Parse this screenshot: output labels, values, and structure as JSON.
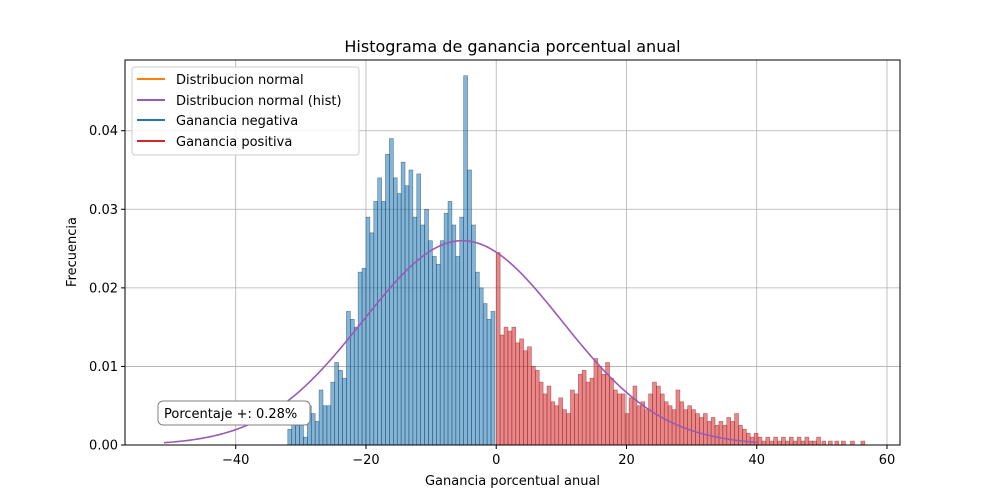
{
  "chart_data": {
    "type": "bar",
    "title": "Histograma de ganancia porcentual anual",
    "xlabel": "Ganancia porcentual anual",
    "ylabel": "Frecuencia",
    "xlim": [
      -57,
      62
    ],
    "ylim": [
      0,
      0.049
    ],
    "xticks": [
      -40,
      -20,
      0,
      20,
      40,
      60
    ],
    "yticks": [
      0.0,
      0.01,
      0.02,
      0.03,
      0.04
    ],
    "xtick_labels": [
      "−40",
      "−20",
      "0",
      "20",
      "40",
      "60"
    ],
    "ytick_labels": [
      "0.00",
      "0.01",
      "0.02",
      "0.03",
      "0.04"
    ],
    "grid": true,
    "legend_position": "top-left",
    "legend": [
      {
        "label": "Distribucion normal",
        "color": "#ff7f0e"
      },
      {
        "label": "Distribucion normal (hist)",
        "color": "#9b59b6"
      },
      {
        "label": "Ganancia negativa",
        "color": "#1f77b4"
      },
      {
        "label": "Ganancia positiva",
        "color": "#d62728"
      }
    ],
    "annotation": "Porcentaje +: 0.28%",
    "normal_curve": {
      "name": "Distribucion normal (hist)",
      "mean": -5.2,
      "std": 15.3,
      "x_range": [
        -51,
        40
      ],
      "color": "#9b59b6"
    },
    "bins": [
      [
        -32.0,
        -31.4,
        0.002
      ],
      [
        -31.4,
        -30.8,
        0.003
      ],
      [
        -30.8,
        -30.2,
        0.0025
      ],
      [
        -30.2,
        -29.6,
        0.003
      ],
      [
        -29.6,
        -29.0,
        0.001
      ],
      [
        -29.0,
        -28.4,
        0.005
      ],
      [
        -28.4,
        -27.8,
        0.004
      ],
      [
        -27.8,
        -27.2,
        0.003
      ],
      [
        -27.2,
        -26.6,
        0.007
      ],
      [
        -26.6,
        -26.0,
        0.005
      ],
      [
        -26.0,
        -25.4,
        0.005
      ],
      [
        -25.4,
        -24.8,
        0.008
      ],
      [
        -24.8,
        -24.2,
        0.0105
      ],
      [
        -24.2,
        -23.6,
        0.0095
      ],
      [
        -23.6,
        -23.0,
        0.0085
      ],
      [
        -23.0,
        -22.4,
        0.017
      ],
      [
        -22.4,
        -21.8,
        0.016
      ],
      [
        -21.8,
        -21.2,
        0.015
      ],
      [
        -21.2,
        -20.6,
        0.022
      ],
      [
        -20.6,
        -20.0,
        0.0225
      ],
      [
        -20.0,
        -19.4,
        0.029
      ],
      [
        -19.4,
        -18.8,
        0.027
      ],
      [
        -18.8,
        -18.2,
        0.031
      ],
      [
        -18.2,
        -17.6,
        0.034
      ],
      [
        -17.6,
        -17.0,
        0.031
      ],
      [
        -17.0,
        -16.4,
        0.037
      ],
      [
        -16.4,
        -15.8,
        0.039
      ],
      [
        -15.8,
        -15.2,
        0.034
      ],
      [
        -15.2,
        -14.6,
        0.032
      ],
      [
        -14.6,
        -14.0,
        0.036
      ],
      [
        -14.0,
        -13.4,
        0.033
      ],
      [
        -13.4,
        -12.8,
        0.035
      ],
      [
        -12.8,
        -12.2,
        0.029
      ],
      [
        -12.2,
        -11.6,
        0.0345
      ],
      [
        -11.6,
        -11.0,
        0.028
      ],
      [
        -11.0,
        -10.4,
        0.03
      ],
      [
        -10.4,
        -9.8,
        0.026
      ],
      [
        -9.8,
        -9.2,
        0.024
      ],
      [
        -9.2,
        -8.6,
        0.023
      ],
      [
        -8.6,
        -8.0,
        0.026
      ],
      [
        -8.0,
        -7.4,
        0.0295
      ],
      [
        -7.4,
        -6.8,
        0.031
      ],
      [
        -6.8,
        -6.2,
        0.028
      ],
      [
        -6.2,
        -5.6,
        0.024
      ],
      [
        -5.6,
        -5.0,
        0.029
      ],
      [
        -5.0,
        -4.4,
        0.047
      ],
      [
        -4.4,
        -3.8,
        0.035
      ],
      [
        -3.8,
        -3.2,
        0.028
      ],
      [
        -3.2,
        -2.6,
        0.022
      ],
      [
        -2.6,
        -2.0,
        0.02
      ],
      [
        -2.0,
        -1.4,
        0.018
      ],
      [
        -1.4,
        -0.8,
        0.016
      ],
      [
        -0.8,
        -0.2,
        0.017
      ],
      [
        0.0,
        0.6,
        0.0245
      ],
      [
        0.6,
        1.2,
        0.014
      ],
      [
        1.2,
        1.8,
        0.015
      ],
      [
        1.8,
        2.4,
        0.0145
      ],
      [
        2.4,
        3.0,
        0.015
      ],
      [
        3.0,
        3.6,
        0.013
      ],
      [
        3.6,
        4.2,
        0.0135
      ],
      [
        4.2,
        4.8,
        0.012
      ],
      [
        4.8,
        5.4,
        0.0125
      ],
      [
        5.4,
        6.0,
        0.01
      ],
      [
        6.0,
        6.6,
        0.0095
      ],
      [
        6.6,
        7.2,
        0.008
      ],
      [
        7.2,
        7.8,
        0.0065
      ],
      [
        7.8,
        8.4,
        0.0075
      ],
      [
        8.4,
        9.0,
        0.0055
      ],
      [
        9.0,
        9.6,
        0.005
      ],
      [
        9.6,
        10.2,
        0.006
      ],
      [
        10.2,
        10.8,
        0.0045
      ],
      [
        10.8,
        11.4,
        0.004
      ],
      [
        11.4,
        12.0,
        0.007
      ],
      [
        12.0,
        12.6,
        0.0065
      ],
      [
        12.6,
        13.2,
        0.009
      ],
      [
        13.2,
        13.8,
        0.0095
      ],
      [
        13.8,
        14.4,
        0.008
      ],
      [
        14.4,
        15.0,
        0.0085
      ],
      [
        15.0,
        15.6,
        0.011
      ],
      [
        15.6,
        16.2,
        0.01
      ],
      [
        16.2,
        16.8,
        0.009
      ],
      [
        16.8,
        17.4,
        0.0105
      ],
      [
        17.4,
        18.0,
        0.0085
      ],
      [
        18.0,
        18.6,
        0.007
      ],
      [
        18.6,
        19.2,
        0.0065
      ],
      [
        19.2,
        19.8,
        0.0065
      ],
      [
        19.8,
        20.4,
        0.004
      ],
      [
        20.4,
        21.0,
        0.006
      ],
      [
        21.0,
        21.6,
        0.0075
      ],
      [
        21.6,
        22.2,
        0.005
      ],
      [
        22.2,
        22.8,
        0.0055
      ],
      [
        22.8,
        23.4,
        0.0045
      ],
      [
        23.4,
        24.0,
        0.0065
      ],
      [
        24.0,
        24.6,
        0.008
      ],
      [
        24.6,
        25.2,
        0.0075
      ],
      [
        25.2,
        25.8,
        0.0065
      ],
      [
        25.8,
        26.4,
        0.0055
      ],
      [
        26.4,
        27.0,
        0.005
      ],
      [
        27.0,
        27.6,
        0.0045
      ],
      [
        27.6,
        28.2,
        0.007
      ],
      [
        28.2,
        28.8,
        0.0055
      ],
      [
        28.8,
        29.4,
        0.0045
      ],
      [
        29.4,
        30.0,
        0.005
      ],
      [
        30.0,
        30.6,
        0.0045
      ],
      [
        30.6,
        31.2,
        0.004
      ],
      [
        31.2,
        31.8,
        0.0035
      ],
      [
        31.8,
        32.4,
        0.004
      ],
      [
        32.4,
        33.0,
        0.003
      ],
      [
        33.0,
        33.6,
        0.0035
      ],
      [
        33.6,
        34.2,
        0.0025
      ],
      [
        34.2,
        34.8,
        0.003
      ],
      [
        34.8,
        35.4,
        0.0025
      ],
      [
        35.4,
        36.0,
        0.0035
      ],
      [
        36.0,
        36.6,
        0.003
      ],
      [
        36.6,
        37.2,
        0.004
      ],
      [
        37.2,
        37.8,
        0.0025
      ],
      [
        37.8,
        38.4,
        0.002
      ],
      [
        38.4,
        39.0,
        0.0015
      ],
      [
        39.0,
        39.6,
        0.001
      ],
      [
        39.6,
        40.2,
        0.0015
      ],
      [
        40.2,
        40.8,
        0.001
      ],
      [
        40.8,
        41.4,
        0.0005
      ],
      [
        41.4,
        42.0,
        0.001
      ],
      [
        42.0,
        42.6,
        0.0005
      ],
      [
        42.6,
        43.2,
        0.001
      ],
      [
        43.2,
        43.8,
        0.0005
      ],
      [
        43.8,
        44.4,
        0.001
      ],
      [
        44.4,
        45.0,
        0.0005
      ],
      [
        45.0,
        45.6,
        0.001
      ],
      [
        45.6,
        46.2,
        0.0005
      ],
      [
        46.2,
        46.8,
        0.001
      ],
      [
        46.8,
        47.4,
        0.0005
      ],
      [
        47.4,
        48.0,
        0.001
      ],
      [
        48.0,
        48.6,
        0.0005
      ],
      [
        48.6,
        49.2,
        0.0005
      ],
      [
        49.2,
        49.8,
        0.001
      ],
      [
        50.0,
        50.6,
        0.0005
      ],
      [
        51.0,
        51.6,
        0.0005
      ],
      [
        52.0,
        52.6,
        0.0005
      ],
      [
        53.0,
        53.6,
        0.0005
      ],
      [
        54.4,
        55.0,
        0.0005
      ],
      [
        56.0,
        56.6,
        0.0005
      ]
    ]
  }
}
